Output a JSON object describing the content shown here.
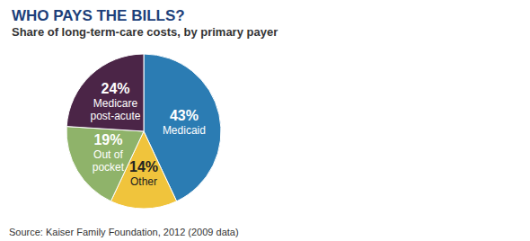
{
  "chart_data": {
    "type": "pie",
    "title": "WHO PAYS THE BILLS?",
    "subtitle": "Share of long-term-care costs, by primary payer",
    "categories": [
      "Medicaid",
      "Other",
      "Out of pocket",
      "Medicare post-acute"
    ],
    "values": [
      43,
      14,
      19,
      24
    ],
    "value_labels": [
      "43%",
      "14%",
      "19%",
      "24%"
    ],
    "colors": [
      "#2b7cb3",
      "#f0c43c",
      "#8fb36a",
      "#4b2547"
    ],
    "data_labels": true,
    "annotations": [
      "Source: Kaiser Family Foundation, 2012 (2009 data)"
    ]
  }
}
